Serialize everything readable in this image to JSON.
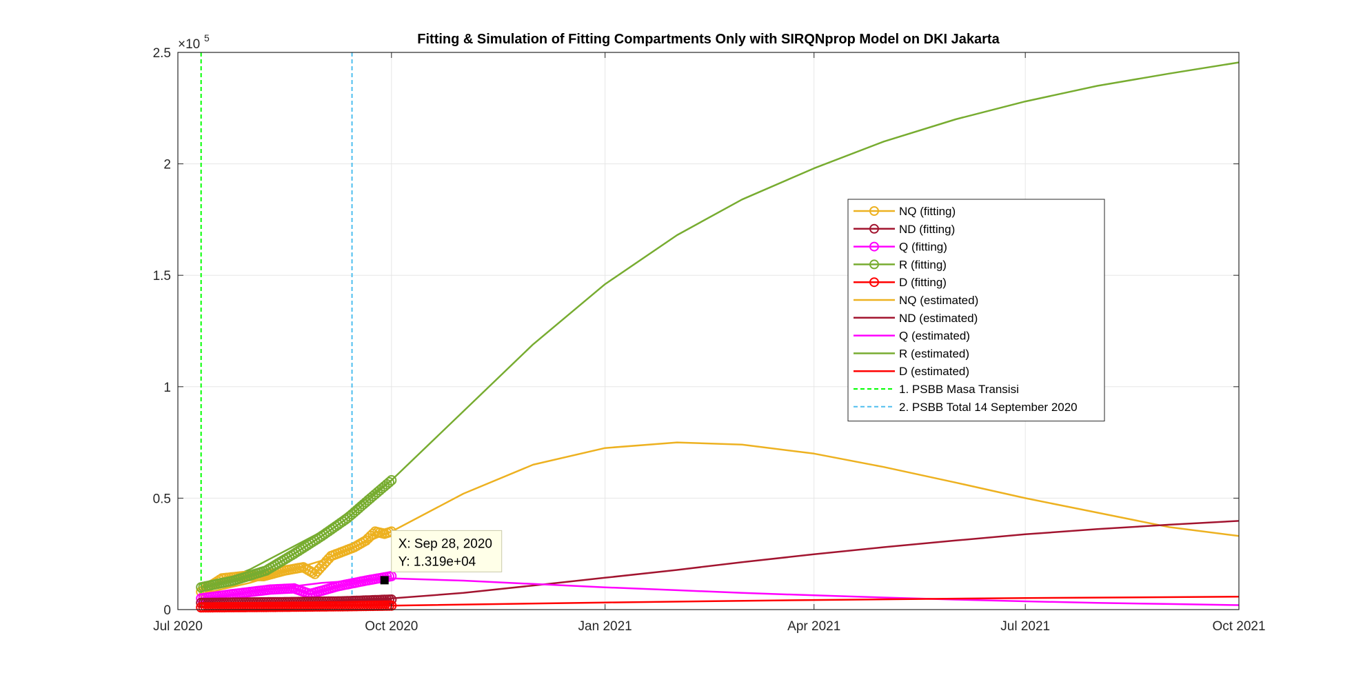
{
  "chart_data": {
    "type": "line",
    "title": "Fitting & Simulation of Fitting Compartments Only with SIRQNprop Model on DKI Jakarta",
    "xlabel": "",
    "ylabel": "",
    "x_range": [
      "2020-07-01",
      "2021-10-01"
    ],
    "x_ticks": [
      {
        "date": "2020-07-01",
        "label": "Jul 2020"
      },
      {
        "date": "2020-10-01",
        "label": "Oct 2020"
      },
      {
        "date": "2021-01-01",
        "label": "Jan 2021"
      },
      {
        "date": "2021-04-01",
        "label": "Apr 2021"
      },
      {
        "date": "2021-07-01",
        "label": "Jul 2021"
      },
      {
        "date": "2021-10-01",
        "label": "Oct 2021"
      }
    ],
    "ylim": [
      0,
      250000
    ],
    "y_ticks": [
      {
        "value": 0,
        "label": "0"
      },
      {
        "value": 50000,
        "label": "0.5"
      },
      {
        "value": 100000,
        "label": "1"
      },
      {
        "value": 150000,
        "label": "1.5"
      },
      {
        "value": 200000,
        "label": "2"
      },
      {
        "value": 250000,
        "label": "2.5"
      }
    ],
    "y_exponent_label": "×10",
    "y_exponent_power": "5",
    "grid": true,
    "legend_position": "upper-center-right",
    "fitting_series": [
      {
        "name": "NQ (fitting)",
        "color": "#EDB120",
        "x": [
          "2020-07-11",
          "2020-07-20",
          "2020-07-29",
          "2020-08-07",
          "2020-08-16",
          "2020-08-24",
          "2020-08-29",
          "2020-09-05",
          "2020-09-10",
          "2020-09-15",
          "2020-09-20",
          "2020-09-24",
          "2020-09-28",
          "2020-10-01"
        ],
        "y": [
          8000,
          14000,
          15000,
          15000,
          17500,
          19000,
          16000,
          24000,
          26000,
          28000,
          31000,
          35000,
          34000,
          35000
        ]
      },
      {
        "name": "ND (fitting)",
        "color": "#A2142F",
        "x": [
          "2020-07-11",
          "2020-07-30",
          "2020-08-20",
          "2020-09-10",
          "2020-10-01"
        ],
        "y": [
          3000,
          3200,
          3400,
          3700,
          4500
        ]
      },
      {
        "name": "Q (fitting)",
        "color": "#FF00FF",
        "x": [
          "2020-07-11",
          "2020-07-25",
          "2020-08-10",
          "2020-08-20",
          "2020-08-27",
          "2020-09-08",
          "2020-09-20",
          "2020-10-01"
        ],
        "y": [
          5000,
          7000,
          9000,
          9500,
          7000,
          10500,
          13000,
          15000
        ]
      },
      {
        "name": "R (fitting)",
        "color": "#77AC30",
        "x": [
          "2020-07-11",
          "2020-07-25",
          "2020-08-08",
          "2020-08-20",
          "2020-09-01",
          "2020-09-12",
          "2020-09-22",
          "2020-10-01"
        ],
        "y": [
          10000,
          13000,
          17500,
          25000,
          33000,
          41000,
          50000,
          58000
        ]
      },
      {
        "name": "D (fitting)",
        "color": "#FF0000",
        "x": [
          "2020-07-11",
          "2020-08-10",
          "2020-09-10",
          "2020-10-01"
        ],
        "y": [
          1000,
          1200,
          1500,
          1800
        ]
      }
    ],
    "estimated_series": [
      {
        "name": "NQ (estimated)",
        "color": "#EDB120",
        "x": [
          "2020-07-11",
          "2020-08-01",
          "2020-09-01",
          "2020-10-01",
          "2020-11-01",
          "2020-12-01",
          "2021-01-01",
          "2021-02-01",
          "2021-03-01",
          "2021-04-01",
          "2021-05-01",
          "2021-06-01",
          "2021-07-01",
          "2021-08-01",
          "2021-09-01",
          "2021-10-01"
        ],
        "y": [
          7000,
          12000,
          22000,
          35000,
          52000,
          65000,
          72500,
          75000,
          74000,
          70000,
          64000,
          57000,
          50000,
          43500,
          37000,
          33000
        ]
      },
      {
        "name": "ND (estimated)",
        "color": "#A2142F",
        "x": [
          "2020-07-11",
          "2020-09-01",
          "2020-10-01",
          "2020-11-01",
          "2020-12-01",
          "2021-01-01",
          "2021-02-01",
          "2021-03-01",
          "2021-04-01",
          "2021-05-01",
          "2021-06-01",
          "2021-07-01",
          "2021-08-01",
          "2021-09-01",
          "2021-10-01"
        ],
        "y": [
          2500,
          3500,
          5000,
          7500,
          10800,
          14300,
          17800,
          21300,
          24800,
          28000,
          31000,
          33800,
          36100,
          38100,
          39800
        ]
      },
      {
        "name": "Q (estimated)",
        "color": "#FF00FF",
        "x": [
          "2020-07-11",
          "2020-08-01",
          "2020-09-01",
          "2020-10-01",
          "2020-11-01",
          "2020-12-01",
          "2021-01-01",
          "2021-02-01",
          "2021-03-01",
          "2021-04-01",
          "2021-05-01",
          "2021-06-01",
          "2021-07-01",
          "2021-08-01",
          "2021-09-01",
          "2021-10-01"
        ],
        "y": [
          4000,
          8000,
          12000,
          14000,
          13000,
          11500,
          10000,
          8700,
          7500,
          6400,
          5400,
          4500,
          3700,
          3000,
          2500,
          2000
        ]
      },
      {
        "name": "R (estimated)",
        "color": "#77AC30",
        "x": [
          "2020-07-11",
          "2020-08-01",
          "2020-09-01",
          "2020-10-01",
          "2020-11-01",
          "2020-12-01",
          "2021-01-01",
          "2021-02-01",
          "2021-03-01",
          "2021-04-01",
          "2021-05-01",
          "2021-06-01",
          "2021-07-01",
          "2021-08-01",
          "2021-09-01",
          "2021-10-01"
        ],
        "y": [
          9000,
          18000,
          35000,
          58000,
          89000,
          119000,
          146000,
          168000,
          184000,
          198000,
          210000,
          220000,
          228000,
          235000,
          240500,
          245500
        ]
      },
      {
        "name": "D (estimated)",
        "color": "#FF0000",
        "x": [
          "2020-07-11",
          "2020-10-01",
          "2021-01-01",
          "2021-04-01",
          "2021-07-01",
          "2021-10-01"
        ],
        "y": [
          1000,
          1800,
          3200,
          4300,
          5200,
          5800
        ]
      }
    ],
    "vlines": [
      {
        "name": "1. PSBB Masa Transisi",
        "date": "2020-07-11",
        "color": "#00FF00"
      },
      {
        "name": "2. PSBB Total 14 September 2020",
        "date": "2020-09-14",
        "color": "#4DBEEE"
      }
    ],
    "datatip": {
      "x_text": "X: Sep 28, 2020",
      "y_text": "Y: 1.319e+04",
      "x": "2020-09-28",
      "y": 13190
    }
  }
}
